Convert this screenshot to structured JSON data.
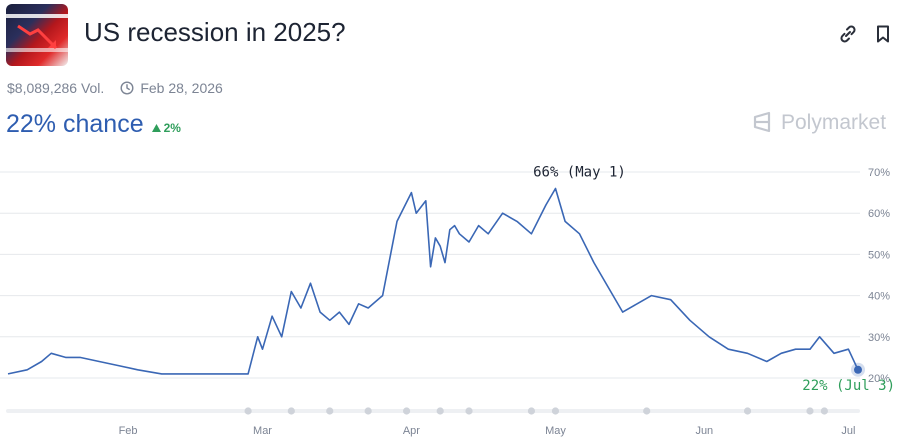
{
  "header": {
    "title": "US recession in 2025?",
    "link_icon": "link-icon",
    "bookmark_icon": "bookmark-icon"
  },
  "meta": {
    "volume": "$8,089,286 Vol.",
    "end_date": "Feb 28, 2026"
  },
  "summary": {
    "chance": "22% chance",
    "change": "2%",
    "change_direction": "up"
  },
  "brand": "Polymarket",
  "colors": {
    "line": "#3a67b5",
    "accent_green": "#2f9e5b",
    "grid": "#e6e8ec"
  },
  "chart_data": {
    "type": "line",
    "title": "",
    "xlabel": "",
    "ylabel": "",
    "ylim": [
      20,
      70
    ],
    "yticks": [
      "70%",
      "60%",
      "50%",
      "40%",
      "30%",
      "20%"
    ],
    "xticks": [
      "Feb",
      "Mar",
      "Apr",
      "May",
      "Jun",
      "Jul"
    ],
    "x_range": [
      "2025-01-07",
      "2025-07-03"
    ],
    "grid": true,
    "series": [
      {
        "name": "",
        "x": [
          "2025-01-07",
          "2025-01-11",
          "2025-01-14",
          "2025-01-16",
          "2025-01-19",
          "2025-01-22",
          "2025-01-26",
          "2025-01-30",
          "2025-02-03",
          "2025-02-08",
          "2025-02-14",
          "2025-02-20",
          "2025-02-26",
          "2025-02-28",
          "2025-03-01",
          "2025-03-03",
          "2025-03-05",
          "2025-03-07",
          "2025-03-09",
          "2025-03-11",
          "2025-03-13",
          "2025-03-15",
          "2025-03-17",
          "2025-03-19",
          "2025-03-21",
          "2025-03-23",
          "2025-03-26",
          "2025-03-29",
          "2025-04-01",
          "2025-04-02",
          "2025-04-04",
          "2025-04-05",
          "2025-04-06",
          "2025-04-07",
          "2025-04-08",
          "2025-04-09",
          "2025-04-10",
          "2025-04-11",
          "2025-04-13",
          "2025-04-15",
          "2025-04-17",
          "2025-04-20",
          "2025-04-23",
          "2025-04-26",
          "2025-04-29",
          "2025-05-01",
          "2025-05-03",
          "2025-05-06",
          "2025-05-09",
          "2025-05-12",
          "2025-05-15",
          "2025-05-18",
          "2025-05-21",
          "2025-05-25",
          "2025-05-29",
          "2025-06-02",
          "2025-06-06",
          "2025-06-10",
          "2025-06-14",
          "2025-06-17",
          "2025-06-20",
          "2025-06-23",
          "2025-06-25",
          "2025-06-28",
          "2025-07-01",
          "2025-07-03"
        ],
        "values": [
          21,
          22,
          24,
          26,
          25,
          25,
          24,
          23,
          22,
          21,
          21,
          21,
          21,
          30,
          27,
          35,
          30,
          41,
          37,
          43,
          36,
          34,
          36,
          33,
          38,
          37,
          40,
          58,
          65,
          60,
          63,
          47,
          54,
          52,
          48,
          56,
          57,
          55,
          53,
          57,
          55,
          60,
          58,
          55,
          62,
          66,
          58,
          55,
          48,
          42,
          36,
          38,
          40,
          39,
          34,
          30,
          27,
          26,
          24,
          26,
          27,
          27,
          30,
          26,
          27,
          22
        ]
      }
    ],
    "annotations": [
      {
        "text": "66% (May 1)",
        "x": "2025-05-01",
        "y": 66
      },
      {
        "text": "22% (Jul 3)",
        "x": "2025-07-03",
        "y": 22
      }
    ],
    "x_dots": [
      "2025-02-26",
      "2025-03-07",
      "2025-03-15",
      "2025-03-23",
      "2025-03-31",
      "2025-04-07",
      "2025-04-13",
      "2025-04-26",
      "2025-05-01",
      "2025-05-20",
      "2025-06-10",
      "2025-06-23",
      "2025-06-26"
    ]
  }
}
